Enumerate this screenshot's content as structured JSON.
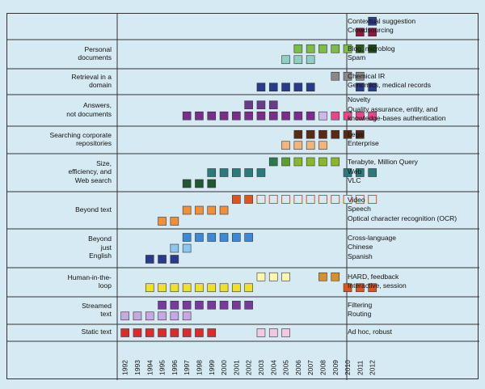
{
  "x_axis_years": [
    "1992",
    "1993",
    "1994",
    "1995",
    "1996",
    "1997",
    "1998",
    "1999",
    "2000",
    "2001",
    "2002",
    "2003",
    "2004",
    "2005",
    "2006",
    "2007",
    "2008",
    "2009",
    "2010",
    "2011",
    "2012"
  ],
  "rows": [
    {
      "label": "",
      "tracks": [
        "Contextual suggestion",
        "Crowdsourcing"
      ],
      "lines": [
        {
          "color": "#2f3b8f",
          "filled": [
            2012
          ],
          "hollow": []
        },
        {
          "color": "#8c1a3c",
          "filled": [
            2011,
            2012
          ],
          "hollow": []
        }
      ]
    },
    {
      "label": "Personal\ndocuments",
      "tracks": [
        "Blog, microblog",
        "Spam"
      ],
      "lines": [
        {
          "color": "#7cbc48",
          "filled": [
            2006,
            2007,
            2008,
            2009,
            2010
          ],
          "hollow": [],
          "extra": {
            "2011": "#2f5a1e",
            "2012": "#1f4a1a"
          }
        },
        {
          "color": "#8fd0c0",
          "filled": [
            2005,
            2006,
            2007
          ],
          "hollow": []
        }
      ]
    },
    {
      "label": "Retrieval in a\ndomain",
      "tracks": [
        "Chemical IR",
        "Genomics, medical records"
      ],
      "lines": [
        {
          "color": "#888888",
          "filled": [
            2009,
            2010,
            2011
          ],
          "hollow": []
        },
        {
          "color": "#2a3a8c",
          "filled": [
            2003,
            2004,
            2005,
            2006,
            2007,
            2011,
            2012
          ],
          "hollow": []
        }
      ]
    },
    {
      "label": "Answers,\nnot documents",
      "tracks": [
        "Novelty",
        "Quality assurance, entity, and",
        "knowledge-bases authentication"
      ],
      "lines": [
        {
          "color": "#6a3a8c",
          "filled": [
            2002,
            2003,
            2004
          ],
          "hollow": []
        },
        {
          "color": "#7a2e8c",
          "filled": [
            1997,
            1998,
            1999,
            2000,
            2001,
            2002,
            2003,
            2004,
            2005,
            2006,
            2007
          ],
          "hollow": [],
          "extra": {
            "2008": "#c9b8e8",
            "2009": "#e6478a",
            "2010": "#e6478a",
            "2011": "#e6478a",
            "2012": "#e6478a"
          }
        }
      ]
    },
    {
      "label": "Searching corporate\nrepositories",
      "tracks": [
        "Legal",
        "Enterprise"
      ],
      "lines": [
        {
          "color": "#5a2a14",
          "filled": [
            2006,
            2007,
            2008,
            2009,
            2010,
            2011
          ],
          "hollow": []
        },
        {
          "color": "#f2b47a",
          "filled": [
            2005,
            2006,
            2007,
            2008
          ],
          "hollow": []
        }
      ]
    },
    {
      "label": "Size,\nefficiency, and\nWeb search",
      "tracks": [
        "Terabyte, Million Query",
        "Web",
        "VLC"
      ],
      "lines": [
        {
          "color": "#8ab828",
          "filled": [
            2004,
            2005,
            2006,
            2007,
            2008,
            2009
          ],
          "hollow": [],
          "extra": {
            "2004": "#2a7a4a",
            "2005": "#5aa02a"
          }
        },
        {
          "color": "#2a7a7c",
          "filled": [
            1999,
            2000,
            2001,
            2002,
            2003,
            2010,
            2011,
            2012
          ],
          "hollow": []
        },
        {
          "color": "#1f5a2e",
          "filled": [
            1997,
            1998,
            1999
          ],
          "hollow": []
        }
      ]
    },
    {
      "label": "Beyond text",
      "tracks": [
        "Video",
        "Speech",
        "Optical character recognition (OCR)"
      ],
      "lines": [
        {
          "color": "#e0531a",
          "filled": [
            2001,
            2002
          ],
          "hollow": [
            2003,
            2004,
            2005,
            2006,
            2007,
            2008,
            2009,
            2010,
            2011,
            2012
          ]
        },
        {
          "color": "#f0903a",
          "filled": [
            1997,
            1998,
            1999,
            2000
          ],
          "hollow": []
        },
        {
          "color": "#f0903a",
          "filled": [
            1995,
            1996
          ],
          "hollow": []
        }
      ]
    },
    {
      "label": "Beyond\njust\nEnglish",
      "tracks": [
        "Cross-language",
        "Chinese",
        "Spanish"
      ],
      "lines": [
        {
          "color": "#3a8ad8",
          "filled": [
            1997,
            1998,
            1999,
            2000,
            2001,
            2002
          ],
          "hollow": []
        },
        {
          "color": "#8ac8f0",
          "filled": [
            1996,
            1997
          ],
          "hollow": []
        },
        {
          "color": "#2a3a8c",
          "filled": [
            1994,
            1995,
            1996
          ],
          "hollow": []
        }
      ]
    },
    {
      "label": "Human-in-the-\nloop",
      "tracks": [
        "HARD, feedback",
        "Interactive, session"
      ],
      "lines": [
        {
          "color": "#fff7b0",
          "filled": [
            2003,
            2004,
            2005
          ],
          "hollow": [],
          "extra": {
            "2008": "#d8902a",
            "2009": "#d8902a"
          }
        },
        {
          "color": "#f0e02a",
          "filled": [
            1994,
            1995,
            1996,
            1997,
            1998,
            1999,
            2000,
            2001,
            2002
          ],
          "hollow": [],
          "extra": {
            "2010": "#e0531a",
            "2011": "#e0531a",
            "2012": "#e0531a"
          }
        }
      ]
    },
    {
      "label": "Streamed\ntext",
      "tracks": [
        "Filtering",
        "Routing"
      ],
      "lines": [
        {
          "color": "#7a3a9c",
          "filled": [
            1995,
            1996,
            1997,
            1998,
            1999,
            2000,
            2001,
            2002
          ],
          "hollow": []
        },
        {
          "color": "#c8a8e0",
          "filled": [
            1992,
            1993,
            1994,
            1995,
            1996,
            1997
          ],
          "hollow": []
        }
      ]
    },
    {
      "label": "Static text",
      "tracks": [
        "Ad hoc, robust"
      ],
      "lines": [
        {
          "color": "#e02a2a",
          "filled": [
            1992,
            1993,
            1994,
            1995,
            1996,
            1997,
            1998,
            1999
          ],
          "hollow": [],
          "extra": {
            "2003": "#f0c8e0",
            "2004": "#f0c8e0",
            "2005": "#f0c8e0"
          }
        }
      ]
    }
  ]
}
